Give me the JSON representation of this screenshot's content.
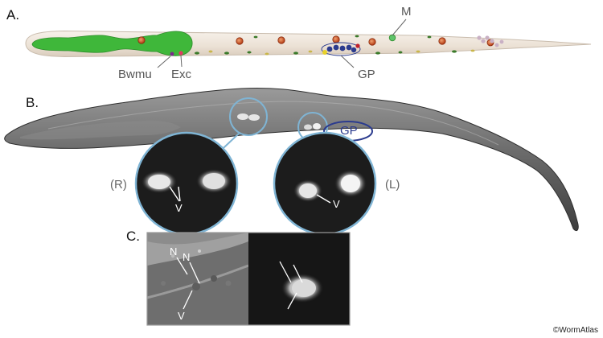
{
  "panels": {
    "a": "A.",
    "b": "B.",
    "c": "C."
  },
  "panel_a_labels": {
    "m": "M",
    "bwmu": "Bwmu",
    "exc": "Exc",
    "gp": "GP"
  },
  "panel_b_labels": {
    "gp": "GP",
    "right": "(R)",
    "left": "(L)",
    "v_right": "V",
    "v_left": "V"
  },
  "panel_c_labels": {
    "n1": "N",
    "n2": "N",
    "v": "V"
  },
  "credit": "©WormAtlas",
  "colors": {
    "worm_body": "#efe6dc",
    "pharynx": "#3fb73a",
    "gp_outline": "#2b3b8e",
    "zoom_circle": "#7fb4d4",
    "nucleus": "#c8481f"
  }
}
